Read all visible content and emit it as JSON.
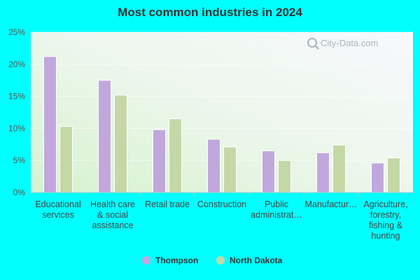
{
  "chart_data": {
    "type": "bar",
    "title": "Most common industries in 2024",
    "categories": [
      [
        "Educational",
        "services"
      ],
      [
        "Health care",
        "& social",
        "assistance"
      ],
      [
        "Retail trade"
      ],
      [
        "Construction"
      ],
      [
        "Public",
        "administrat…"
      ],
      [
        "Manufactur…"
      ],
      [
        "Agriculture,",
        "forestry,",
        "fishing &",
        "hunting"
      ]
    ],
    "series": [
      {
        "name": "Thompson",
        "color": "#c0a8dc",
        "values": [
          21.2,
          17.5,
          9.8,
          8.3,
          6.5,
          6.2,
          4.6
        ]
      },
      {
        "name": "North Dakota",
        "color": "#c4d8a6",
        "values": [
          10.3,
          15.2,
          11.5,
          7.1,
          5.0,
          7.4,
          5.4
        ]
      }
    ],
    "ylim": [
      0,
      25
    ],
    "yticks": [
      "0%",
      "5%",
      "10%",
      "15%",
      "20%",
      "25%"
    ],
    "ytick_values": [
      0,
      5,
      10,
      15,
      20,
      25
    ],
    "grid": true,
    "legend_position": "bottom-center"
  },
  "watermark": "City-Data.com"
}
